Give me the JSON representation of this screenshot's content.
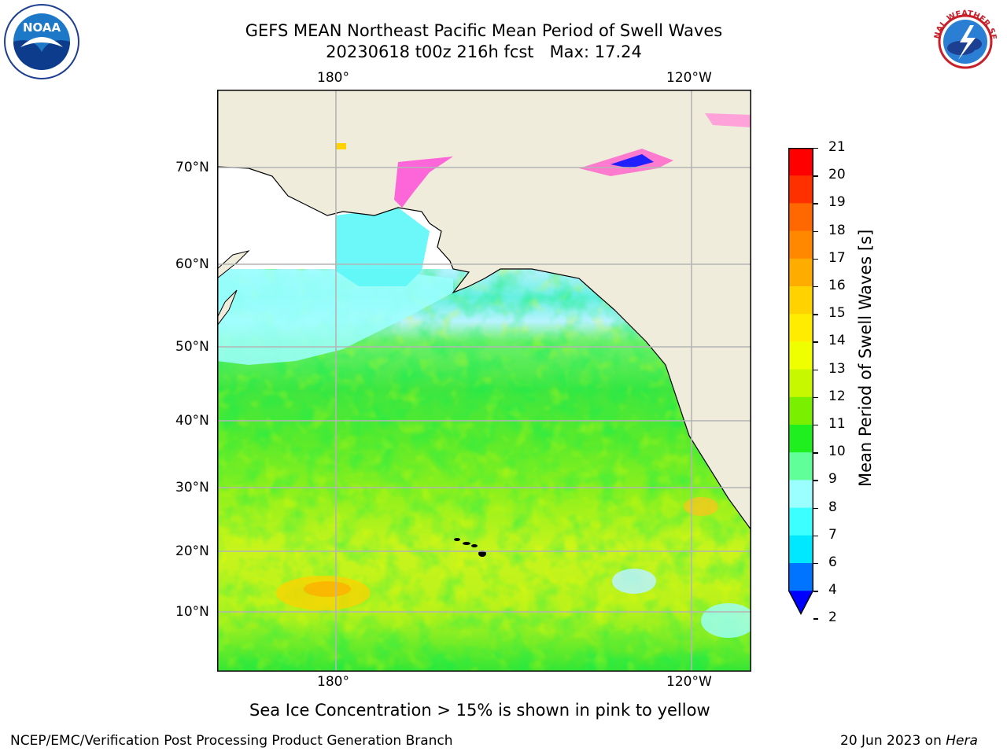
{
  "header": {
    "title_line1": "GEFS MEAN Northeast Pacific Mean Period of Swell Waves",
    "title_line2": "20230618 t00z 216h fcst   Max: 17.24"
  },
  "logos": {
    "left": {
      "icon": "noaa-logo",
      "text": "NOAA"
    },
    "right": {
      "icon": "national-weather-service-logo",
      "text": "NATIONAL WEATHER SERVICE"
    }
  },
  "map": {
    "lon_labels": [
      "180°",
      "120°W"
    ],
    "lat_labels": [
      "70°N",
      "60°N",
      "50°N",
      "40°N",
      "30°N",
      "20°N",
      "10°N"
    ],
    "colors": {
      "land": "#efecdc",
      "gridline": "#b4b4b4",
      "coast": "#000000"
    }
  },
  "colorbar": {
    "label": "Mean Period of Swell Waves [s]",
    "ticks": [
      "2",
      "4",
      "6",
      "7",
      "8",
      "9",
      "10",
      "11",
      "12",
      "13",
      "14",
      "15",
      "16",
      "17",
      "18",
      "19",
      "20",
      "21"
    ],
    "colors": [
      "#0000ff",
      "#0073ff",
      "#00e8ff",
      "#3cffff",
      "#9cffff",
      "#60ff9a",
      "#1fee1f",
      "#7af000",
      "#c8f800",
      "#f0ff00",
      "#ffec00",
      "#ffd200",
      "#ffac00",
      "#ff8800",
      "#ff6800",
      "#ff3000",
      "#ff0000"
    ]
  },
  "caption": "Sea Ice Concentration > 15% is shown in pink to yellow",
  "footer": {
    "left": "NCEP/EMC/Verification Post Processing Product Generation Branch",
    "right_prefix": "20 Jun 2023 on ",
    "right_machine": "Hera"
  }
}
